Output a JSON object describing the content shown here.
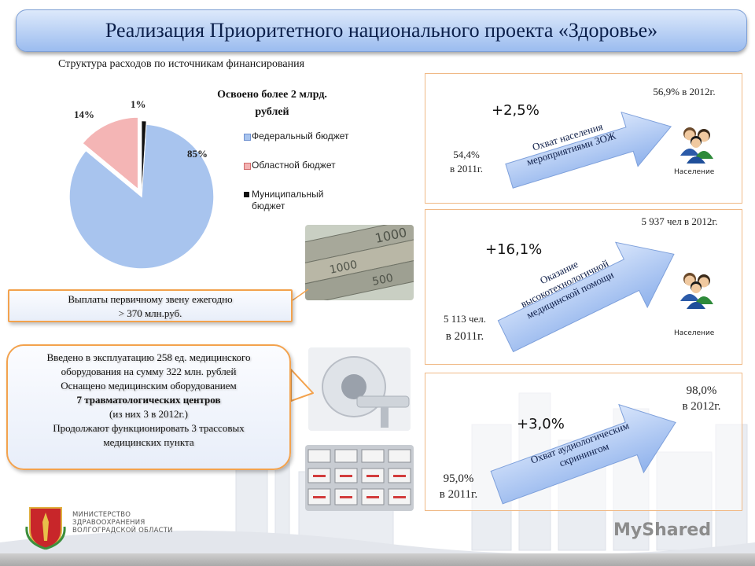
{
  "title": "Реализация Приоритетного национального проекта «Здоровье»",
  "subtitle": "Структура расходов по источникам финансирования",
  "pie_note": "Освоено более 2 млрд. рублей",
  "chart_data": {
    "type": "pie",
    "title": "",
    "slices": [
      {
        "name": "Федеральный бюджет",
        "value": 85,
        "label": "85%",
        "color": "#a8c4ee"
      },
      {
        "name": "Областной бюджет",
        "value": 14,
        "label": "14%",
        "color": "#f4b5b5"
      },
      {
        "name": "Муниципальный бюджет",
        "value": 1,
        "label": "1%",
        "color": "#111111"
      }
    ],
    "legend_position": "right"
  },
  "legend": [
    {
      "label": "Федеральный бюджет"
    },
    {
      "label": "Областной бюджет"
    },
    {
      "label": "Муниципальный бюджет"
    }
  ],
  "callout1": {
    "line1": "Выплаты первичному звену ежегодно",
    "line2": "> 370 млн.руб."
  },
  "callout2": {
    "line1": "Введено в эксплуатацию 258 ед. медицинского",
    "line2": "оборудования на сумму 322 млн. рублей",
    "line3": "Оснащено медицинским оборудованием",
    "line4": "7 травматологических центров",
    "line5": "(из них 3 в 2012г.)",
    "line6": "Продолжают функционировать 3 трассовых",
    "line7": "медицинских пункта"
  },
  "panels": [
    {
      "change": "+2,5%",
      "before_line1": "54,4%",
      "before_line2": "в 2011г.",
      "after": "56,9% в 2012г.",
      "arrow_line1": "Охват населения",
      "arrow_line2": "мероприятиями ЗОЖ",
      "people_label": "Население"
    },
    {
      "change": "+16,1%",
      "before_line1": "5 113 чел.",
      "before_line2": "в 2011г.",
      "after": "5 937 чел в 2012г.",
      "arrow_line1": "Оказание",
      "arrow_line2": "высокотехнологичной",
      "arrow_line3": "медицинской помощи",
      "people_label": "Население"
    },
    {
      "change": "+3,0%",
      "before_line1": "95,0%",
      "before_line2": "в 2011г.",
      "after_line1": "98,0%",
      "after_line2": "в 2012г.",
      "arrow_line1": "Охват аудиологическим",
      "arrow_line2": "скринингом"
    }
  ],
  "ministry": {
    "line1": "МИНИСТЕРСТВО",
    "line2": "ЗДРАВООХРАНЕНИЯ",
    "line3": "ВОЛГОГРАДСКОЙ ОБЛАСТИ"
  },
  "watermark": "MyShared",
  "icons": [
    "coat-of-arms-icon",
    "people-icon",
    "money-photo",
    "mri-photo",
    "ambulances-photo"
  ]
}
